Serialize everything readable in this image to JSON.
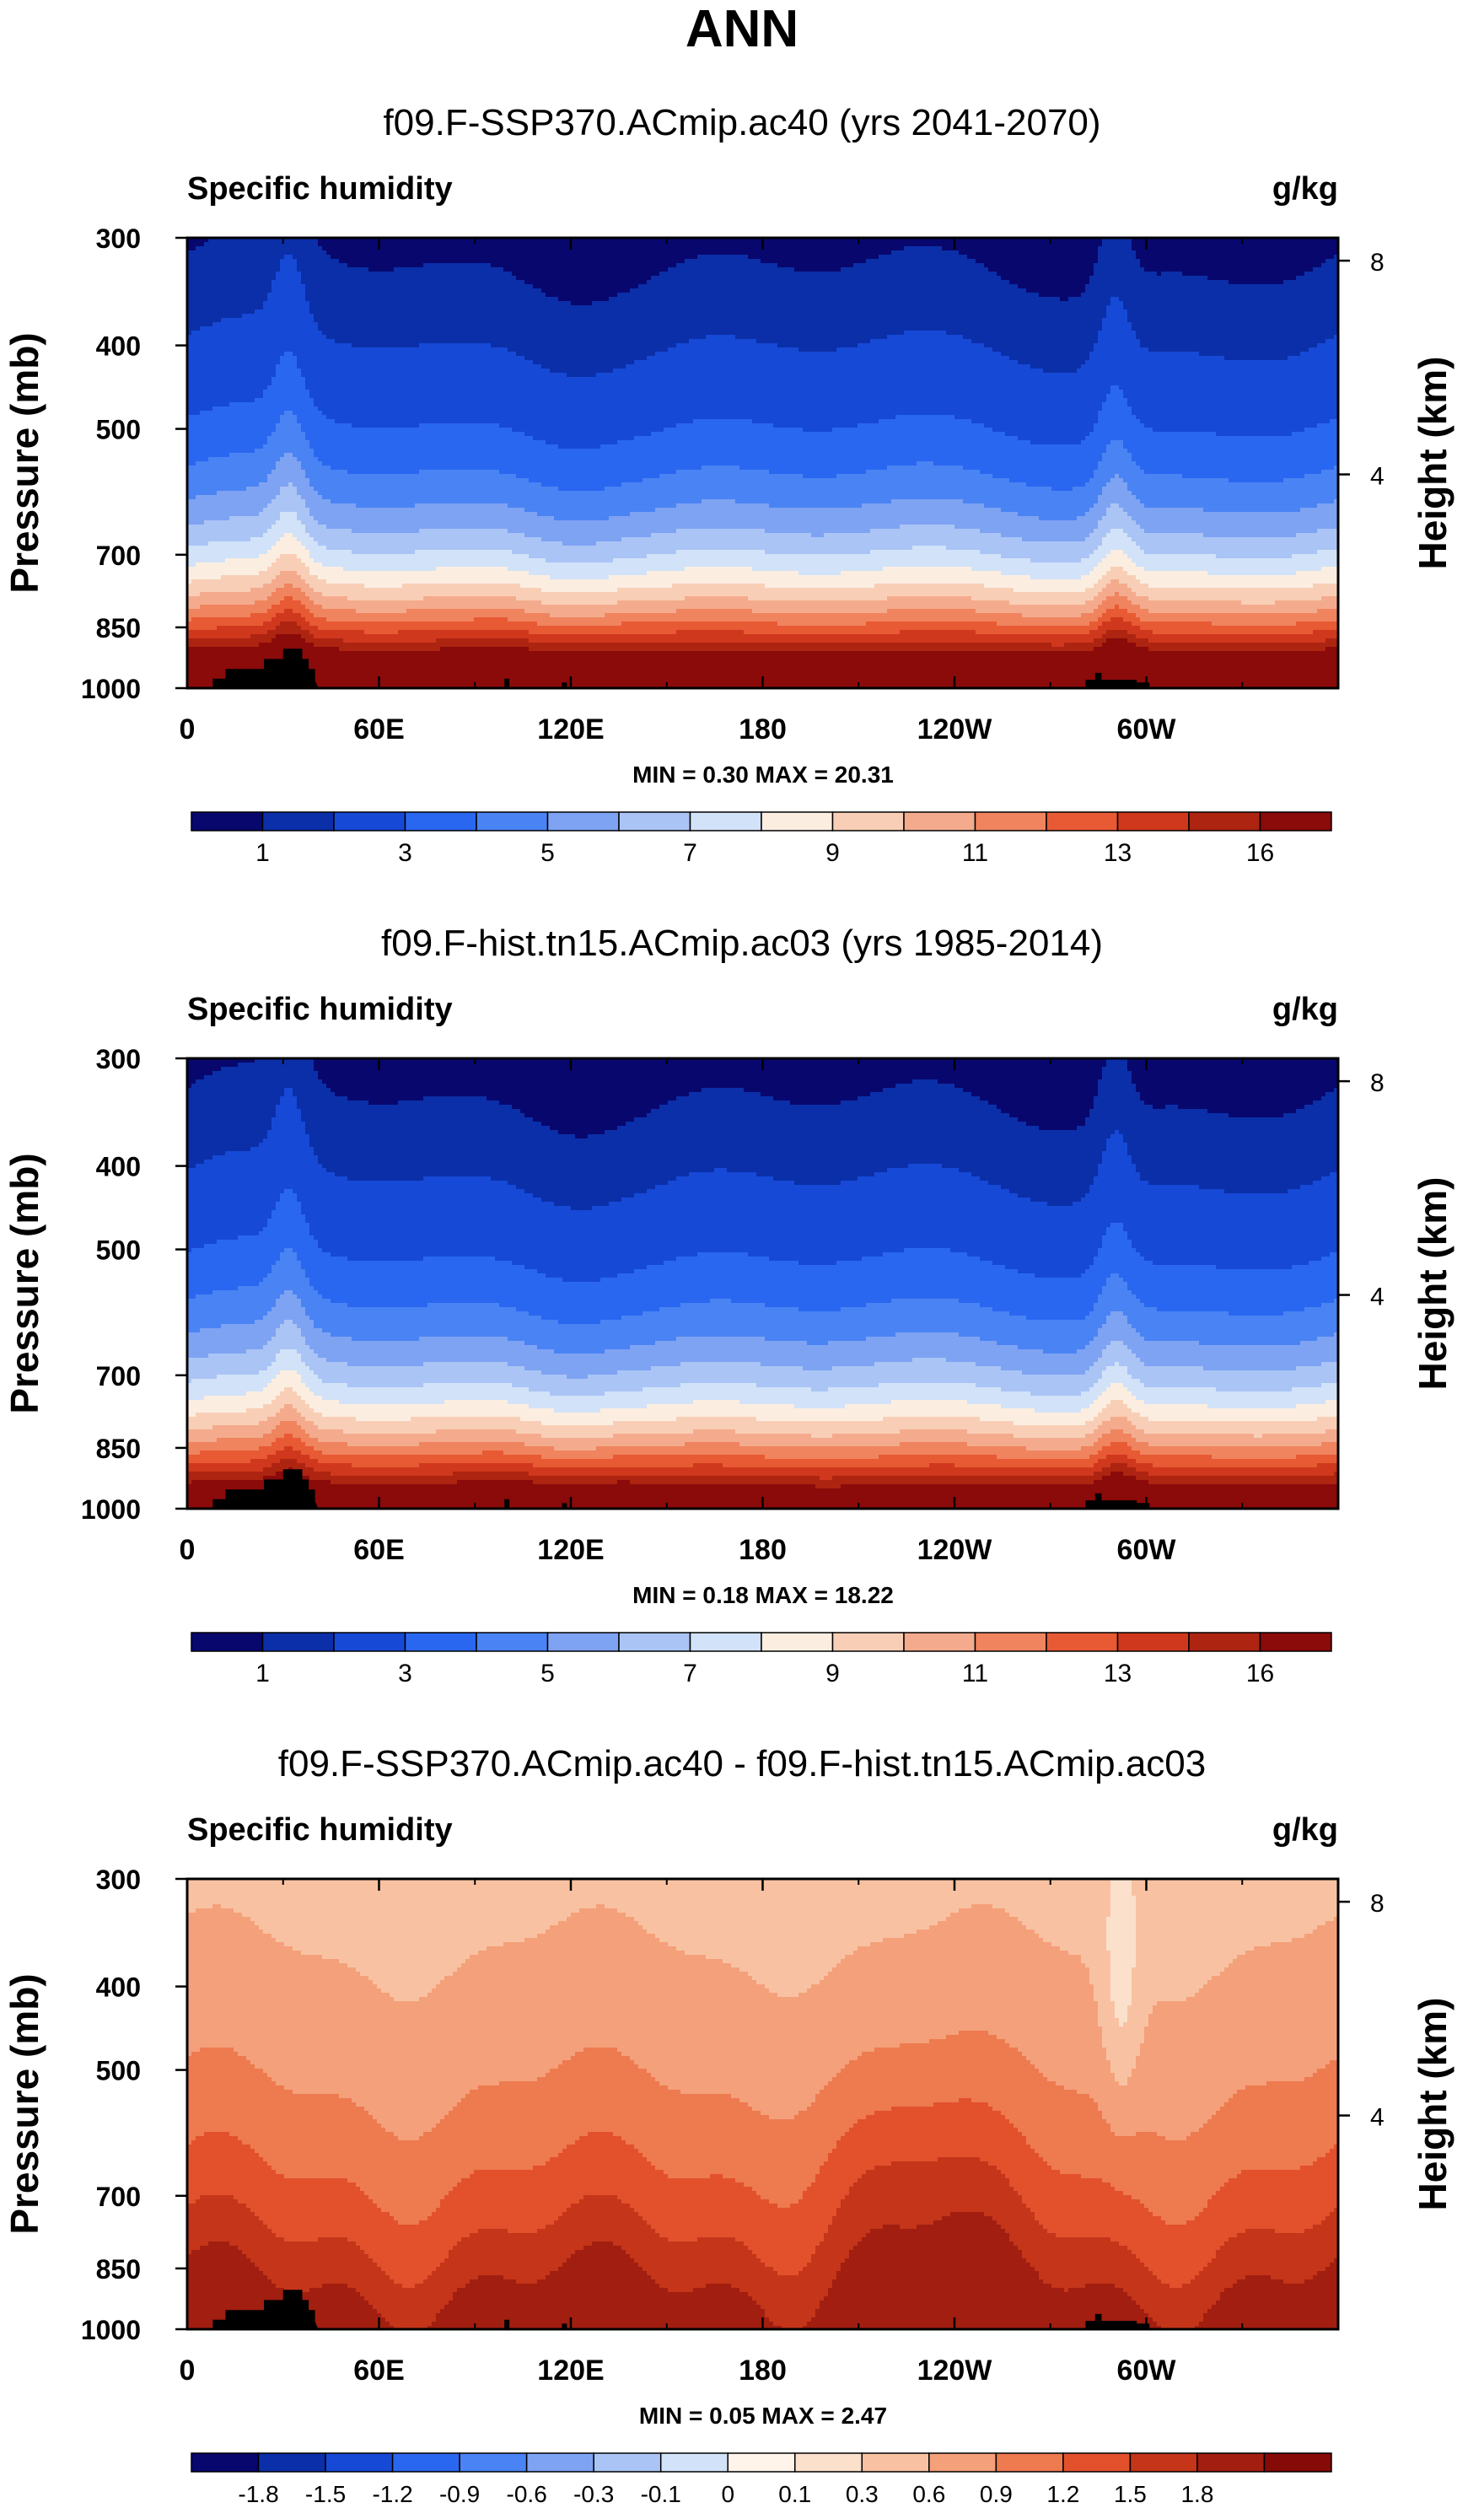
{
  "page_title": "ANN",
  "colors": {
    "sequential": [
      "#08076e",
      "#0b2fa8",
      "#1649d6",
      "#2a67f0",
      "#4a83f3",
      "#7ea3f3",
      "#aac4f5",
      "#d2e2f8",
      "#fbeee1",
      "#f8cfb6",
      "#f4ab8d",
      "#ef845f",
      "#e75a34",
      "#d0381d",
      "#ad2411",
      "#8b0a0a"
    ],
    "diverging": [
      "#08076e",
      "#0b2fa8",
      "#1649d6",
      "#2a67f0",
      "#4a83f3",
      "#7ea3f3",
      "#aac4f5",
      "#d2e2f8",
      "#fef4ea",
      "#fbe0cc",
      "#f8c2a2",
      "#f4a07a",
      "#ee7a4f",
      "#e2512c",
      "#c43519",
      "#a11e10",
      "#850a08"
    ],
    "topography": "#000000"
  },
  "chart_data": [
    {
      "type": "contour",
      "title": "f09.F-SSP370.ACmip.ac40 (yrs 2041-2070)",
      "variable": "Specific humidity",
      "units": "g/kg",
      "ylabel": "Pressure (mb)",
      "ylabel_right": "Height (km)",
      "x_ticks": [
        "0",
        "60E",
        "120E",
        "180",
        "120W",
        "60W"
      ],
      "y_ticks": [
        "300",
        "400",
        "500",
        "700",
        "850",
        "1000"
      ],
      "y_right_ticks": [
        "8",
        "4"
      ],
      "min_label": "MIN =   0.30  MAX =  20.31",
      "min": 0.3,
      "max": 20.31,
      "colorbar_labels": [
        "1",
        "3",
        "5",
        "7",
        "9",
        "11",
        "13",
        "16"
      ],
      "colorbar_levels": [
        0.5,
        1,
        2,
        3,
        4,
        5,
        6,
        7,
        8,
        9,
        10,
        11,
        12,
        13,
        14,
        16
      ]
    },
    {
      "type": "contour",
      "title": "f09.F-hist.tn15.ACmip.ac03 (yrs 1985-2014)",
      "variable": "Specific humidity",
      "units": "g/kg",
      "ylabel": "Pressure (mb)",
      "ylabel_right": "Height (km)",
      "x_ticks": [
        "0",
        "60E",
        "120E",
        "180",
        "120W",
        "60W"
      ],
      "y_ticks": [
        "300",
        "400",
        "500",
        "700",
        "850",
        "1000"
      ],
      "y_right_ticks": [
        "8",
        "4"
      ],
      "min_label": "MIN =   0.18  MAX =  18.22",
      "min": 0.18,
      "max": 18.22,
      "colorbar_labels": [
        "1",
        "3",
        "5",
        "7",
        "9",
        "11",
        "13",
        "16"
      ],
      "colorbar_levels": [
        0.5,
        1,
        2,
        3,
        4,
        5,
        6,
        7,
        8,
        9,
        10,
        11,
        12,
        13,
        14,
        16
      ]
    },
    {
      "type": "contour",
      "title": "f09.F-SSP370.ACmip.ac40 - f09.F-hist.tn15.ACmip.ac03",
      "variable": "Specific humidity",
      "units": "g/kg",
      "ylabel": "Pressure (mb)",
      "ylabel_right": "Height (km)",
      "x_ticks": [
        "0",
        "60E",
        "120E",
        "180",
        "120W",
        "60W"
      ],
      "y_ticks": [
        "300",
        "400",
        "500",
        "700",
        "850",
        "1000"
      ],
      "y_right_ticks": [
        "8",
        "4"
      ],
      "min_label": "MIN =   0.05  MAX =   2.47",
      "min": 0.05,
      "max": 2.47,
      "colorbar_labels": [
        "-1.8",
        "-1.5",
        "-1.2",
        "-0.9",
        "-0.6",
        "-0.3",
        "-0.1",
        "0",
        "0.1",
        "0.3",
        "0.6",
        "0.9",
        "1.2",
        "1.5",
        "1.8"
      ],
      "colorbar_levels": [
        -1.8,
        -1.5,
        -1.2,
        -0.9,
        -0.6,
        -0.3,
        -0.1,
        0,
        0.1,
        0.3,
        0.6,
        0.9,
        1.2,
        1.5,
        1.8
      ]
    }
  ]
}
